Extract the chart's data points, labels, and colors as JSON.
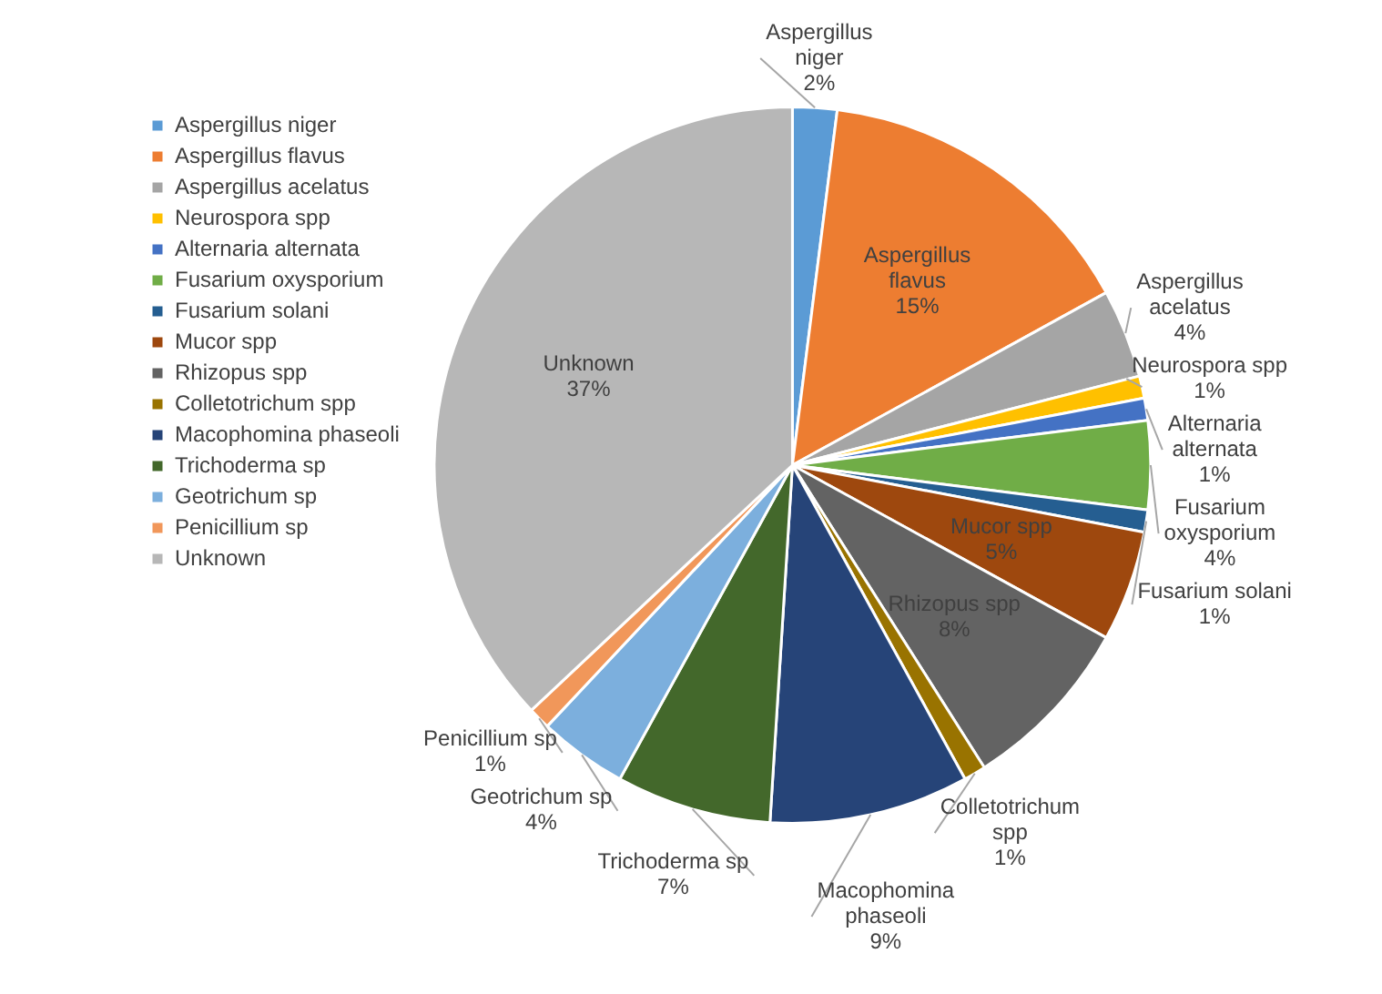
{
  "chart_data": {
    "type": "pie",
    "categories": [
      "Aspergillus niger",
      "Aspergillus flavus",
      "Aspergillus acelatus",
      "Neurospora spp",
      "Alternaria alternata",
      "Fusarium oxysporium",
      "Fusarium solani",
      "Mucor spp",
      "Rhizopus spp",
      "Colletotrichum spp",
      "Macophomina phaseoli",
      "Trichoderma sp",
      "Geotrichum sp",
      "Penicillium sp",
      "Unknown"
    ],
    "values": [
      2,
      15,
      4,
      1,
      1,
      4,
      1,
      5,
      8,
      1,
      9,
      7,
      4,
      1,
      37
    ],
    "value_labels": [
      "2%",
      "15%",
      "4%",
      "1%",
      "1%",
      "4%",
      "1%",
      "5%",
      "8%",
      "1%",
      "9%",
      "7%",
      "4%",
      "1%",
      "37%"
    ],
    "colors": [
      "#5b9bd5",
      "#ed7d31",
      "#a5a5a5",
      "#ffc000",
      "#4472c4",
      "#70ad47",
      "#255e91",
      "#9e480e",
      "#636363",
      "#997300",
      "#264478",
      "#43682b",
      "#7cafdd",
      "#f1975a",
      "#b7b7b7"
    ],
    "legend": "top left"
  }
}
